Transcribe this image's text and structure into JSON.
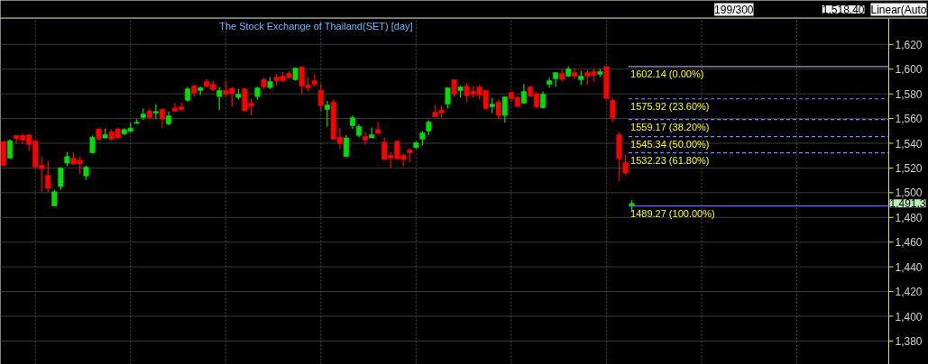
{
  "chart_data": {
    "type": "candlestick",
    "title": "The Stock Exchange of Thailand(SET) [day]",
    "categories": [
      null,
      null,
      null,
      null,
      null,
      null,
      null,
      null,
      null,
      null,
      null,
      null,
      null,
      null,
      null,
      null,
      null,
      null,
      null,
      null,
      null,
      null,
      null,
      null,
      null,
      null,
      null,
      null,
      null,
      null,
      null,
      null,
      null,
      null,
      null,
      null,
      null,
      null,
      null,
      null,
      null,
      null,
      null,
      null,
      null,
      null,
      null,
      null,
      null,
      null,
      null,
      null,
      null,
      null,
      null,
      null,
      null,
      null,
      null,
      null,
      null,
      null,
      null,
      null,
      null,
      null,
      null,
      null,
      null,
      null,
      null,
      null,
      null,
      null,
      null,
      null,
      null,
      null,
      null,
      null,
      null,
      null,
      null,
      null,
      null,
      null,
      null,
      null,
      null,
      null,
      null,
      null,
      null,
      null,
      null,
      null,
      null,
      null,
      null,
      null,
      null,
      null,
      null,
      null,
      null,
      null,
      null,
      null,
      null,
      null,
      null,
      null,
      null,
      null,
      null,
      null,
      null,
      null,
      null,
      null,
      null,
      null,
      null,
      null,
      null,
      null,
      null,
      null,
      null,
      null,
      null,
      null,
      null,
      null,
      null,
      null,
      null,
      null,
      null,
      null
    ],
    "ohlc": [
      [
        1541.4,
        1541.4,
        1522.0,
        1522.0
      ],
      [
        1528.0,
        1543.1,
        1527.5,
        1542.1
      ],
      [
        1546.3,
        1546.7,
        1539.4,
        1543.6
      ],
      [
        1546.3,
        1548.2,
        1539.4,
        1542.6
      ],
      [
        1546.7,
        1547.5,
        1533.6,
        1539.0
      ],
      [
        1541.9,
        1541.9,
        1519.5,
        1520.8
      ],
      [
        1522.2,
        1529.2,
        1500.6,
        1519.5
      ],
      [
        1514.2,
        1525.6,
        1500.6,
        1503.5
      ],
      [
        1489.3,
        1502.5,
        1489.27,
        1500.8
      ],
      [
        1505.0,
        1520.7,
        1502.1,
        1520.0
      ],
      [
        1523.9,
        1533.1,
        1521.5,
        1529.2
      ],
      [
        1528.0,
        1532.9,
        1522.4,
        1523.2
      ],
      [
        1526.3,
        1529.2,
        1515.2,
        1523.2
      ],
      [
        1513.5,
        1522.0,
        1510.3,
        1520.7
      ],
      [
        1532.2,
        1546.2,
        1531.7,
        1545.0
      ],
      [
        1551.6,
        1552.3,
        1542.6,
        1543.3
      ],
      [
        1544.3,
        1551.6,
        1543.8,
        1547.0
      ],
      [
        1549.2,
        1551.1,
        1542.6,
        1543.3
      ],
      [
        1551.6,
        1552.3,
        1543.3,
        1544.3
      ],
      [
        1547.5,
        1552.3,
        1546.7,
        1551.1
      ],
      [
        1549.6,
        1556.4,
        1549.2,
        1552.3
      ],
      [
        1556.0,
        1559.6,
        1555.9,
        1557.0
      ],
      [
        1560.8,
        1568.1,
        1558.9,
        1563.7
      ],
      [
        1566.2,
        1568.1,
        1559.6,
        1560.8
      ],
      [
        1564.2,
        1571.7,
        1559.6,
        1565.7
      ],
      [
        1567.6,
        1568.1,
        1552.3,
        1559.6
      ],
      [
        1555.7,
        1565.7,
        1554.5,
        1562.3
      ],
      [
        1568.6,
        1572.5,
        1565.9,
        1565.9
      ],
      [
        1569.6,
        1573.0,
        1566.2,
        1567.4
      ],
      [
        1574.9,
        1585.6,
        1573.4,
        1584.1
      ],
      [
        1586.3,
        1587.5,
        1577.8,
        1580.7
      ],
      [
        1582.7,
        1586.3,
        1579.0,
        1584.9
      ],
      [
        1590.0,
        1591.9,
        1585.8,
        1585.8
      ],
      [
        1587.8,
        1590.7,
        1582.2,
        1583.4
      ],
      [
        1577.8,
        1585.6,
        1566.9,
        1582.7
      ],
      [
        1582.7,
        1590.4,
        1577.8,
        1579.8
      ],
      [
        1584.4,
        1585.6,
        1569.8,
        1580.2
      ],
      [
        1577.1,
        1583.9,
        1575.4,
        1579.8
      ],
      [
        1584.1,
        1584.1,
        1566.2,
        1566.2
      ],
      [
        1572.5,
        1575.9,
        1562.5,
        1569.8
      ],
      [
        1577.8,
        1585.6,
        1575.4,
        1584.9
      ],
      [
        1591.4,
        1592.9,
        1583.9,
        1585.8
      ],
      [
        1585.1,
        1593.6,
        1583.9,
        1590.0
      ],
      [
        1593.6,
        1596.3,
        1586.5,
        1590.7
      ],
      [
        1594.3,
        1597.7,
        1589.2,
        1590.7
      ],
      [
        1596.5,
        1598.4,
        1592.9,
        1592.9
      ],
      [
        1591.4,
        1600.9,
        1590.7,
        1600.9
      ],
      [
        1601.6,
        1602.1,
        1579.8,
        1586.3
      ],
      [
        1587.3,
        1593.6,
        1581.9,
        1584.9
      ],
      [
        1590.7,
        1595.8,
        1585.6,
        1587.8
      ],
      [
        1582.7,
        1588.0,
        1565.7,
        1570.5
      ],
      [
        1567.4,
        1574.2,
        1553.5,
        1571.0
      ],
      [
        1573.4,
        1575.4,
        1543.3,
        1543.3
      ],
      [
        1545.0,
        1552.3,
        1535.3,
        1539.7
      ],
      [
        1529.2,
        1546.7,
        1528.8,
        1544.3
      ],
      [
        1554.3,
        1562.5,
        1551.6,
        1560.8
      ],
      [
        1546.3,
        1555.5,
        1545.0,
        1553.5
      ],
      [
        1545.5,
        1549.2,
        1539.0,
        1542.6
      ],
      [
        1544.3,
        1552.8,
        1544.3,
        1547.0
      ],
      [
        1551.1,
        1557.2,
        1547.9,
        1547.9
      ],
      [
        1540.9,
        1544.5,
        1526.8,
        1526.8
      ],
      [
        1530.2,
        1532.9,
        1520.3,
        1528.0
      ],
      [
        1541.6,
        1542.6,
        1526.8,
        1527.5
      ],
      [
        1530.2,
        1531.7,
        1521.5,
        1526.8
      ],
      [
        1534.6,
        1536.0,
        1524.4,
        1532.2
      ],
      [
        1536.5,
        1541.4,
        1535.3,
        1540.4
      ],
      [
        1543.3,
        1549.9,
        1538.2,
        1548.4
      ],
      [
        1549.9,
        1558.4,
        1546.3,
        1557.2
      ],
      [
        1565.2,
        1571.0,
        1561.5,
        1561.5
      ],
      [
        1566.9,
        1570.5,
        1560.8,
        1564.5
      ],
      [
        1571.7,
        1584.9,
        1568.1,
        1584.9
      ],
      [
        1591.4,
        1591.4,
        1577.8,
        1579.8
      ],
      [
        1582.7,
        1586.5,
        1577.1,
        1585.6
      ],
      [
        1586.3,
        1588.5,
        1573.4,
        1578.5
      ],
      [
        1581.9,
        1586.3,
        1577.1,
        1579.8
      ],
      [
        1585.6,
        1587.0,
        1575.4,
        1579.0
      ],
      [
        1582.7,
        1582.7,
        1567.4,
        1568.1
      ],
      [
        1569.6,
        1576.6,
        1564.5,
        1571.7
      ],
      [
        1573.4,
        1575.4,
        1559.6,
        1562.5
      ],
      [
        1562.5,
        1577.6,
        1556.7,
        1577.6
      ],
      [
        1581.2,
        1581.2,
        1573.4,
        1576.1
      ],
      [
        1577.1,
        1578.5,
        1569.8,
        1569.8
      ],
      [
        1572.5,
        1588.0,
        1571.7,
        1581.9
      ],
      [
        1585.6,
        1586.5,
        1577.1,
        1578.3
      ],
      [
        1580.2,
        1581.4,
        1568.1,
        1569.3
      ],
      [
        1568.8,
        1581.9,
        1568.1,
        1579.8
      ],
      [
        1587.8,
        1592.9,
        1585.1,
        1590.7
      ],
      [
        1592.1,
        1597.2,
        1585.6,
        1597.2
      ],
      [
        1596.5,
        1600.1,
        1590.0,
        1591.7
      ],
      [
        1594.3,
        1602.1,
        1593.6,
        1600.1
      ],
      [
        1597.2,
        1600.9,
        1592.1,
        1594.3
      ],
      [
        1591.4,
        1598.7,
        1587.0,
        1594.3
      ],
      [
        1597.2,
        1599.4,
        1587.0,
        1594.3
      ],
      [
        1598.0,
        1600.9,
        1590.0,
        1595.1
      ],
      [
        1595.8,
        1600.1,
        1593.6,
        1598.0
      ],
      [
        1602.1,
        1602.14,
        1576.1,
        1576.1
      ],
      [
        1574.7,
        1576.6,
        1557.2,
        1560.3
      ],
      [
        1547.0,
        1548.7,
        1509.3,
        1527.5
      ],
      [
        1524.4,
        1531.0,
        1514.2,
        1515.9
      ],
      [
        1489.7,
        1494.0,
        1485.1,
        1491.3
      ],
      null,
      null,
      null,
      null,
      null,
      null,
      null,
      null,
      null,
      null,
      null,
      null,
      null,
      null,
      null,
      null,
      null,
      null,
      null,
      null,
      null,
      null,
      null,
      null,
      null,
      null,
      null,
      null,
      null,
      null,
      null,
      null,
      null,
      null,
      null,
      null,
      null,
      null,
      null,
      null
    ],
    "colors": [
      "#ff0000",
      "#00e000",
      "#ff0000",
      "#ff0000",
      "#ff0000",
      "#ff0000",
      "#ff0000",
      "#ff0000",
      "#00e000",
      "#00e000",
      "#00e000",
      "#ff0000",
      "#ff0000",
      "#00e000",
      "#00e000",
      "#ff0000",
      "#00e000",
      "#ff0000",
      "#ff0000",
      "#00e000",
      "#00e000",
      "#00e000",
      "#00e000",
      "#ff0000",
      "#00e000",
      "#ff0000",
      "#00e000",
      "#ff0000",
      "#ff0000",
      "#00e000",
      "#ff0000",
      "#00e000",
      "#ff0000",
      "#ff0000",
      "#00e000",
      "#ff0000",
      "#ff0000",
      "#00e000",
      "#ff0000",
      "#ff0000",
      "#00e000",
      "#ff0000",
      "#00e000",
      "#ff0000",
      "#ff0000",
      "#ff0000",
      "#00e000",
      "#ff0000",
      "#ff0000",
      "#ff0000",
      "#ff0000",
      "#00e000",
      "#ff0000",
      "#ff0000",
      "#00e000",
      "#00e000",
      "#00e000",
      "#ff0000",
      "#00e000",
      "#ff0000",
      "#ff0000",
      "#ff0000",
      "#ff0000",
      "#ff0000",
      "#ff0000",
      "#00e000",
      "#00e000",
      "#00e000",
      "#ff0000",
      "#ff0000",
      "#00e000",
      "#ff0000",
      "#00e000",
      "#ff0000",
      "#ff0000",
      "#ff0000",
      "#ff0000",
      "#00e000",
      "#ff0000",
      "#00e000",
      "#ff0000",
      "#ff0000",
      "#00e000",
      "#ff0000",
      "#ff0000",
      "#00e000",
      "#00e000",
      "#00e000",
      "#ff0000",
      "#00e000",
      "#ff0000",
      "#00e000",
      "#ff0000",
      "#ff0000",
      "#00e000",
      "#ff0000",
      "#ff0000",
      "#ff0000",
      "#ff0000",
      "#00e000",
      null,
      null,
      null,
      null,
      null,
      null,
      null,
      null,
      null,
      null,
      null,
      null,
      null,
      null,
      null,
      null,
      null,
      null,
      null,
      null,
      null,
      null,
      null,
      null,
      null,
      null,
      null,
      null,
      null,
      null,
      null,
      null,
      null,
      null,
      null,
      null,
      null,
      null,
      null,
      null
    ],
    "ylim": [
      1361,
      1641
    ],
    "yticks": [
      {
        "value": 1380,
        "label": "1,380"
      },
      {
        "value": 1400,
        "label": "1,400"
      },
      {
        "value": 1420,
        "label": "1,420"
      },
      {
        "value": 1440,
        "label": "1,440"
      },
      {
        "value": 1460,
        "label": "1,460"
      },
      {
        "value": 1480,
        "label": "1,480"
      },
      {
        "value": 1500,
        "label": "1,500"
      },
      {
        "value": 1520,
        "label": "1,520"
      },
      {
        "value": 1540,
        "label": "1,540"
      },
      {
        "value": 1560,
        "label": "1,560"
      },
      {
        "value": 1580,
        "label": "1,580"
      },
      {
        "value": 1600,
        "label": "1,600"
      },
      {
        "value": 1620,
        "label": "1,620"
      }
    ],
    "grid": true,
    "tick_labels": "y",
    "ref_lines": [
      {
        "axis": "y",
        "value": 1602.14,
        "label": "1602.14 (0.00%)",
        "color": "#a0a0c8",
        "line_style": "solid"
      },
      {
        "axis": "y",
        "value": 1575.92,
        "label": "1575.92 (23.60%)",
        "color": "#8080ff",
        "line_style": "dashed"
      },
      {
        "axis": "y",
        "value": 1559.17,
        "label": "1559.17 (38.20%)",
        "color": "#8080ff",
        "line_style": "dashed"
      },
      {
        "axis": "y",
        "value": 1545.34,
        "label": "1545.34 (50.00%)",
        "color": "#8080ff",
        "line_style": "dashed"
      },
      {
        "axis": "y",
        "value": 1532.23,
        "label": "1532.23 (61.80%)",
        "color": "#8080ff",
        "line_style": "dashed"
      },
      {
        "axis": "y",
        "value": 1489.27,
        "label": "1489.27 (100.00%)",
        "color": "#6a6aff",
        "line_style": "solid"
      }
    ],
    "annotations": [
      "199/300",
      "1,518.40",
      "Linear(Auto",
      "1,491.3"
    ]
  }
}
